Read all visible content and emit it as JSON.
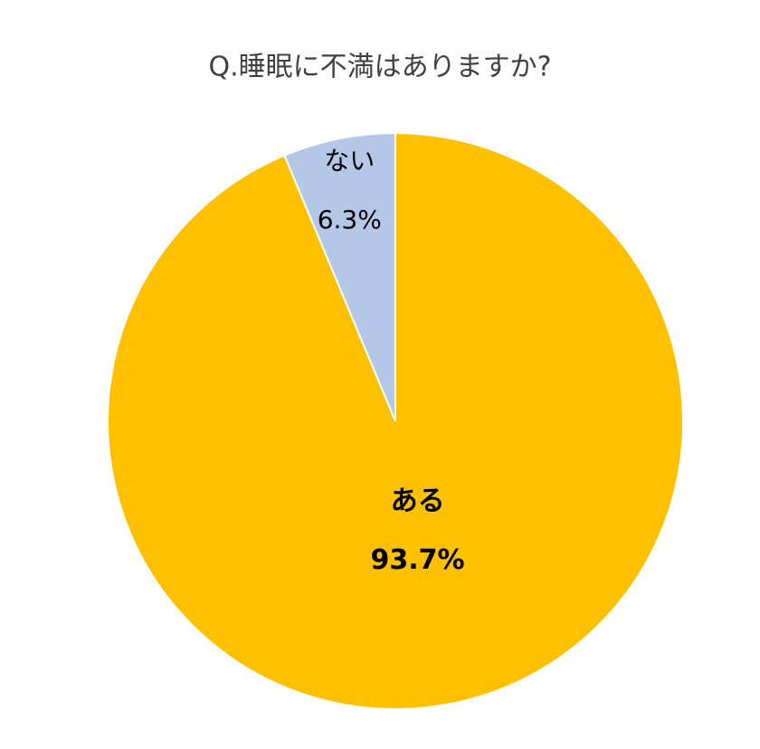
{
  "chart_data": {
    "type": "pie",
    "title": "Q.睡眠に不満はありますか?",
    "categories": [
      "ある",
      "ない"
    ],
    "values": [
      93.7,
      6.3
    ],
    "value_labels": [
      "93.7%",
      "6.3%"
    ],
    "colors": [
      "#FFC000",
      "#B4C7E7"
    ]
  }
}
